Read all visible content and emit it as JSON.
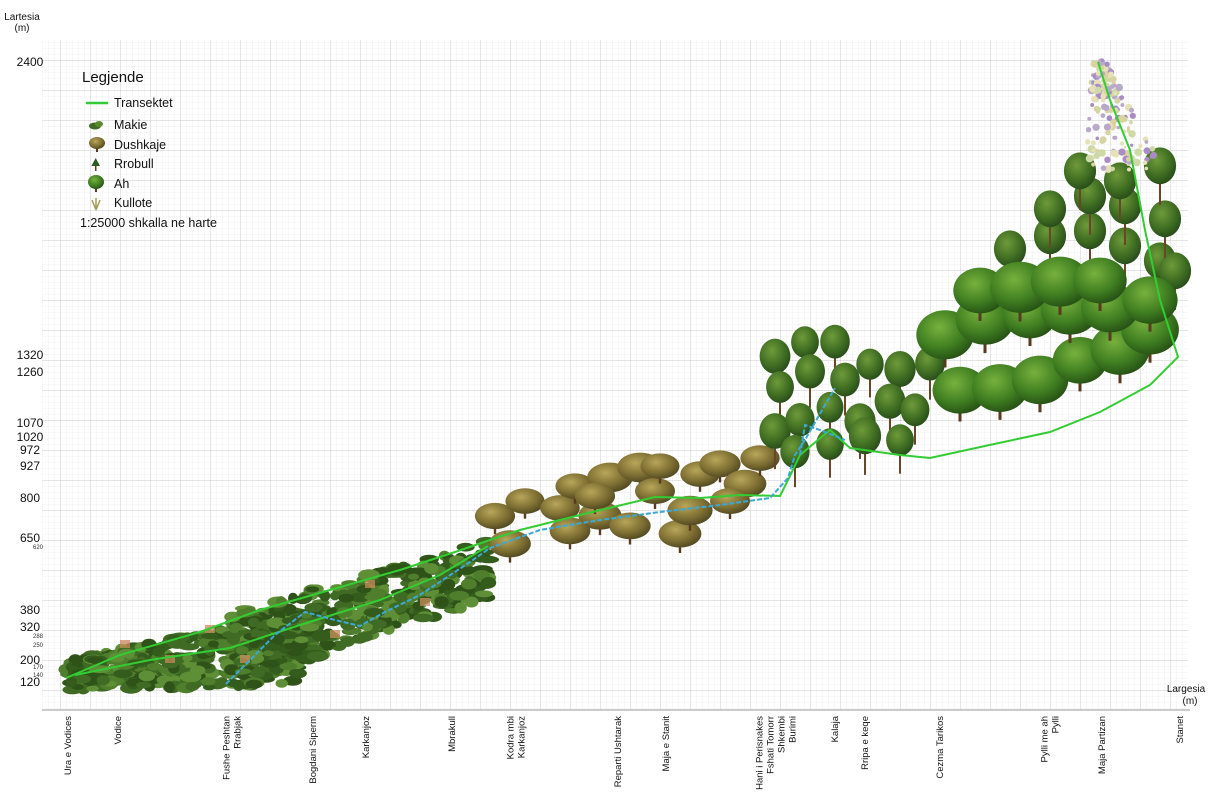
{
  "axes": {
    "y_title_line1": "Lartesia",
    "y_title_line2": "(m)",
    "x_title_line1": "Largesia",
    "x_title_line2": "(m)"
  },
  "y_ticks": [
    {
      "value": 2400,
      "label": "2400",
      "size": "big"
    },
    {
      "value": 1320,
      "label": "1320",
      "size": "big"
    },
    {
      "value": 1260,
      "label": "1260",
      "size": "big"
    },
    {
      "value": 1070,
      "label": "1070",
      "size": "big"
    },
    {
      "value": 1020,
      "label": "1020",
      "size": "big"
    },
    {
      "value": 972,
      "label": "972",
      "size": "big"
    },
    {
      "value": 927,
      "label": "927",
      "size": "big"
    },
    {
      "value": 800,
      "label": "800",
      "size": "big"
    },
    {
      "value": 650,
      "label": "650",
      "size": "big"
    },
    {
      "value": 620,
      "label": "620",
      "size": "small"
    },
    {
      "value": 380,
      "label": "380",
      "size": "big"
    },
    {
      "value": 320,
      "label": "320",
      "size": "big"
    },
    {
      "value": 288,
      "label": "288",
      "size": "small"
    },
    {
      "value": 250,
      "label": "250",
      "size": "small"
    },
    {
      "value": 200,
      "label": "200",
      "size": "big"
    },
    {
      "value": 170,
      "label": "170",
      "size": "small"
    },
    {
      "value": 140,
      "label": "140",
      "size": "small"
    },
    {
      "value": 120,
      "label": "120",
      "size": "big"
    }
  ],
  "x_labels": [
    [
      "Ura e Vodices"
    ],
    [
      "Vodice"
    ],
    [
      "Fushe Peshtan",
      "Rrabjak"
    ],
    [
      "Bogdani Siperm"
    ],
    [
      "Karkanjoz"
    ],
    [
      "Mbrakull"
    ],
    [
      "Kodra mbi",
      "Karkanjoz"
    ],
    [
      "Reparti Ushtarak"
    ],
    [
      "Maja e Stanit"
    ],
    [
      "Hani i Perisnakes",
      "Fshati Tomorr",
      "Shkembi",
      "Burimi"
    ],
    [
      "Kalaja"
    ],
    [
      "Rripa e keqe"
    ],
    [
      "Cezma Tarikos"
    ],
    [
      "Pylli me ah",
      "Pylli"
    ],
    [
      "Maja Partizan"
    ],
    [
      "Stanet"
    ]
  ],
  "legend": {
    "title": "Legjende",
    "items": [
      {
        "label": "Transektet",
        "icon": "green-line-icon"
      },
      {
        "label": "Makie",
        "icon": "makie-shrub-icon"
      },
      {
        "label": "Dushkaje",
        "icon": "oak-tree-icon"
      },
      {
        "label": "Rrobull",
        "icon": "pine-tree-icon"
      },
      {
        "label": "Ah",
        "icon": "beech-tree-icon"
      },
      {
        "label": "Kullote",
        "icon": "pasture-grass-icon"
      }
    ],
    "scale_note": "1:25000 shkalla ne harte"
  },
  "colors": {
    "transect_green": "#33cc33",
    "transect_blue": "#3aa9d6",
    "grid": "#d9d9d9",
    "makie": "#3f6b24",
    "dushkaje": "#8a7a3c",
    "rrobull": "#2f5a22",
    "ah": "#3b7a22",
    "kullote": "#e6e1b8"
  }
}
